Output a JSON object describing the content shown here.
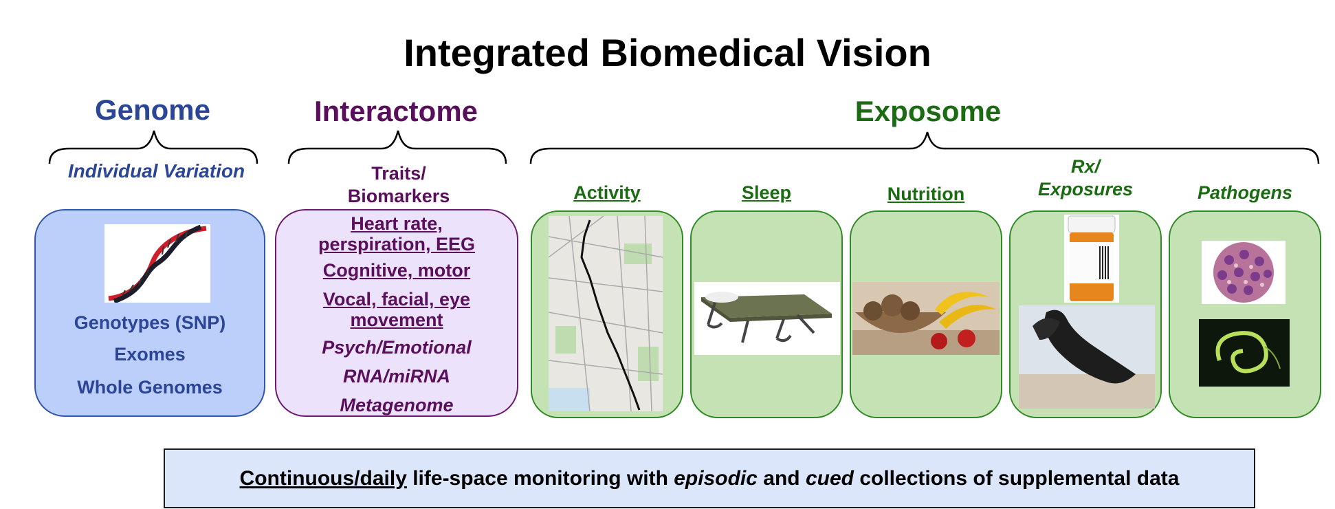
{
  "title": "Integrated Biomedical Vision",
  "genome": {
    "heading": "Genome",
    "subtitle": "Individual Variation",
    "items": [
      "Genotypes (SNP)",
      "Exomes",
      "Whole Genomes"
    ],
    "image_icon": "dna-helix-icon"
  },
  "interactome": {
    "heading": "Interactome",
    "subtitle_line1": "Traits/",
    "subtitle_line2": "Biomarkers",
    "items": [
      {
        "line1": "Heart rate,",
        "line2": "perspiration, EEG"
      },
      {
        "line1": "Cognitive, motor"
      },
      {
        "line1": "Vocal, facial, eye",
        "line2": "movement"
      },
      {
        "line1": "Psych/Emotional"
      },
      {
        "line1": "RNA/miRNA"
      },
      {
        "line1": "Metagenome"
      }
    ]
  },
  "exposome": {
    "heading": "Exposome",
    "categories": [
      {
        "label": "Activity",
        "image": "route-map-icon"
      },
      {
        "label": "Sleep",
        "image": "cot-bed-icon"
      },
      {
        "label": "Nutrition",
        "image": "fruit-bowl-icon"
      },
      {
        "label_line1": "Rx/",
        "label_line2": "Exposures",
        "image": "pill-bottle-icon",
        "image2": "smoke-plume-icon"
      },
      {
        "label": "Pathogens",
        "image": "virus-icon",
        "image2": "bacterium-icon"
      }
    ]
  },
  "footer": {
    "part1": "Continuous/daily",
    "part2": " life-space monitoring with ",
    "part3": "episodic",
    "part4": " and ",
    "part5": "cued",
    "part6": " collections of supplemental data"
  },
  "colors": {
    "genome": "#2b4597",
    "interactome": "#5a0f5c",
    "exposome": "#1b6b12",
    "genome_box": "#bccffa",
    "interactome_box": "#ece2fb",
    "exposome_box": "#c4e2b3",
    "footer_box": "#dce6fb"
  }
}
